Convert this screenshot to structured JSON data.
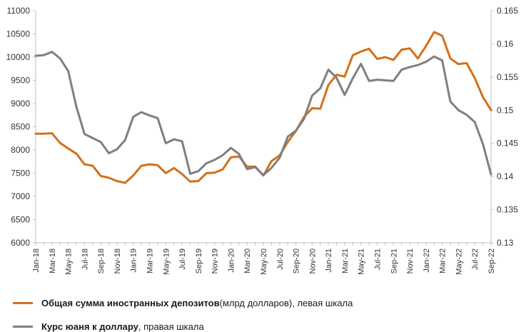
{
  "chart_data": {
    "type": "line",
    "title": "",
    "categories": [
      "Jan-18",
      "Feb-18",
      "Mar-18",
      "Apr-18",
      "May-18",
      "Jun-18",
      "Jul-18",
      "Aug-18",
      "Sep-18",
      "Oct-18",
      "Nov-18",
      "Dec-18",
      "Jan-19",
      "Feb-19",
      "Mar-19",
      "Apr-19",
      "May-19",
      "Jun-19",
      "Jul-19",
      "Aug-19",
      "Sep-19",
      "Oct-19",
      "Nov-19",
      "Dec-19",
      "Jan-20",
      "Feb-20",
      "Mar-20",
      "Apr-20",
      "May-20",
      "Jun-20",
      "Jul-20",
      "Aug-20",
      "Sep-20",
      "Oct-20",
      "Nov-20",
      "Dec-20",
      "Jan-21",
      "Feb-21",
      "Mar-21",
      "Apr-21",
      "May-21",
      "Jun-21",
      "Jul-21",
      "Aug-21",
      "Sep-21",
      "Oct-21",
      "Nov-21",
      "Dec-21",
      "Jan-22",
      "Feb-22",
      "Mar-22",
      "Apr-22",
      "May-22",
      "Jun-22",
      "Jul-22",
      "Aug-22",
      "Sep-22"
    ],
    "x_tick_labels": [
      "Jan-18",
      "Mar-18",
      "May-18",
      "Jul-18",
      "Sep-18",
      "Nov-18",
      "Jan-19",
      "Mar-19",
      "May-19",
      "Jul-19",
      "Sep-19",
      "Nov-19",
      "Jan-20",
      "Mar-20",
      "May-20",
      "Jul-20",
      "Sep-20",
      "Nov-20",
      "Jan-21",
      "Mar-21",
      "May-21",
      "Jul-21",
      "Sep-21",
      "Nov-21",
      "Jan-22",
      "Mar-22",
      "May-22",
      "Jul-22",
      "Sep-22"
    ],
    "left_axis": {
      "ylim": [
        6000,
        11000
      ],
      "ticks": [
        "6000",
        "6500",
        "7000",
        "7500",
        "8000",
        "8500",
        "9000",
        "9500",
        "10000",
        "10500",
        "11000"
      ]
    },
    "right_axis": {
      "ylim": [
        0.13,
        0.165
      ],
      "ticks": [
        "0.13",
        "0.135",
        "0.14",
        "0.145",
        "0.15",
        "0.155",
        "0.16",
        "0.165"
      ]
    },
    "grid": false,
    "legend_position": "bottom-left",
    "series": [
      {
        "name": "Общая сумма иностранных депозитов",
        "name_suffix": " (млрд долларов), левая шкала",
        "axis": "left",
        "color": "#d3701b",
        "values": [
          8350,
          8350,
          8360,
          8150,
          8030,
          7920,
          7690,
          7660,
          7440,
          7400,
          7330,
          7290,
          7450,
          7660,
          7690,
          7670,
          7500,
          7610,
          7480,
          7320,
          7330,
          7500,
          7510,
          7580,
          7840,
          7860,
          7640,
          7640,
          7450,
          7760,
          7880,
          8170,
          8410,
          8710,
          8900,
          8890,
          9400,
          9620,
          9580,
          10040,
          10120,
          10180,
          9960,
          10000,
          9940,
          10160,
          10190,
          9970,
          10240,
          10540,
          10460,
          9970,
          9850,
          9870,
          9550,
          9140,
          8860
        ]
      },
      {
        "name": "Курс юаня к доллару",
        "name_suffix": ", правая шкала",
        "axis": "right",
        "color": "#7f7f7f",
        "values": [
          0.1582,
          0.1583,
          0.1588,
          0.1578,
          0.1559,
          0.1505,
          0.1464,
          0.1458,
          0.1452,
          0.1435,
          0.1441,
          0.1455,
          0.149,
          0.1497,
          0.1492,
          0.1488,
          0.145,
          0.1456,
          0.1453,
          0.1404,
          0.1408,
          0.142,
          0.1425,
          0.1432,
          0.1443,
          0.1434,
          0.1411,
          0.1414,
          0.1402,
          0.1413,
          0.1428,
          0.146,
          0.1469,
          0.1487,
          0.1522,
          0.1533,
          0.1561,
          0.1549,
          0.1523,
          0.1548,
          0.157,
          0.1544,
          0.1546,
          0.1545,
          0.1544,
          0.1561,
          0.1565,
          0.1568,
          0.1573,
          0.1581,
          0.1575,
          0.1513,
          0.15,
          0.1493,
          0.1482,
          0.1449,
          0.1403
        ]
      }
    ]
  }
}
